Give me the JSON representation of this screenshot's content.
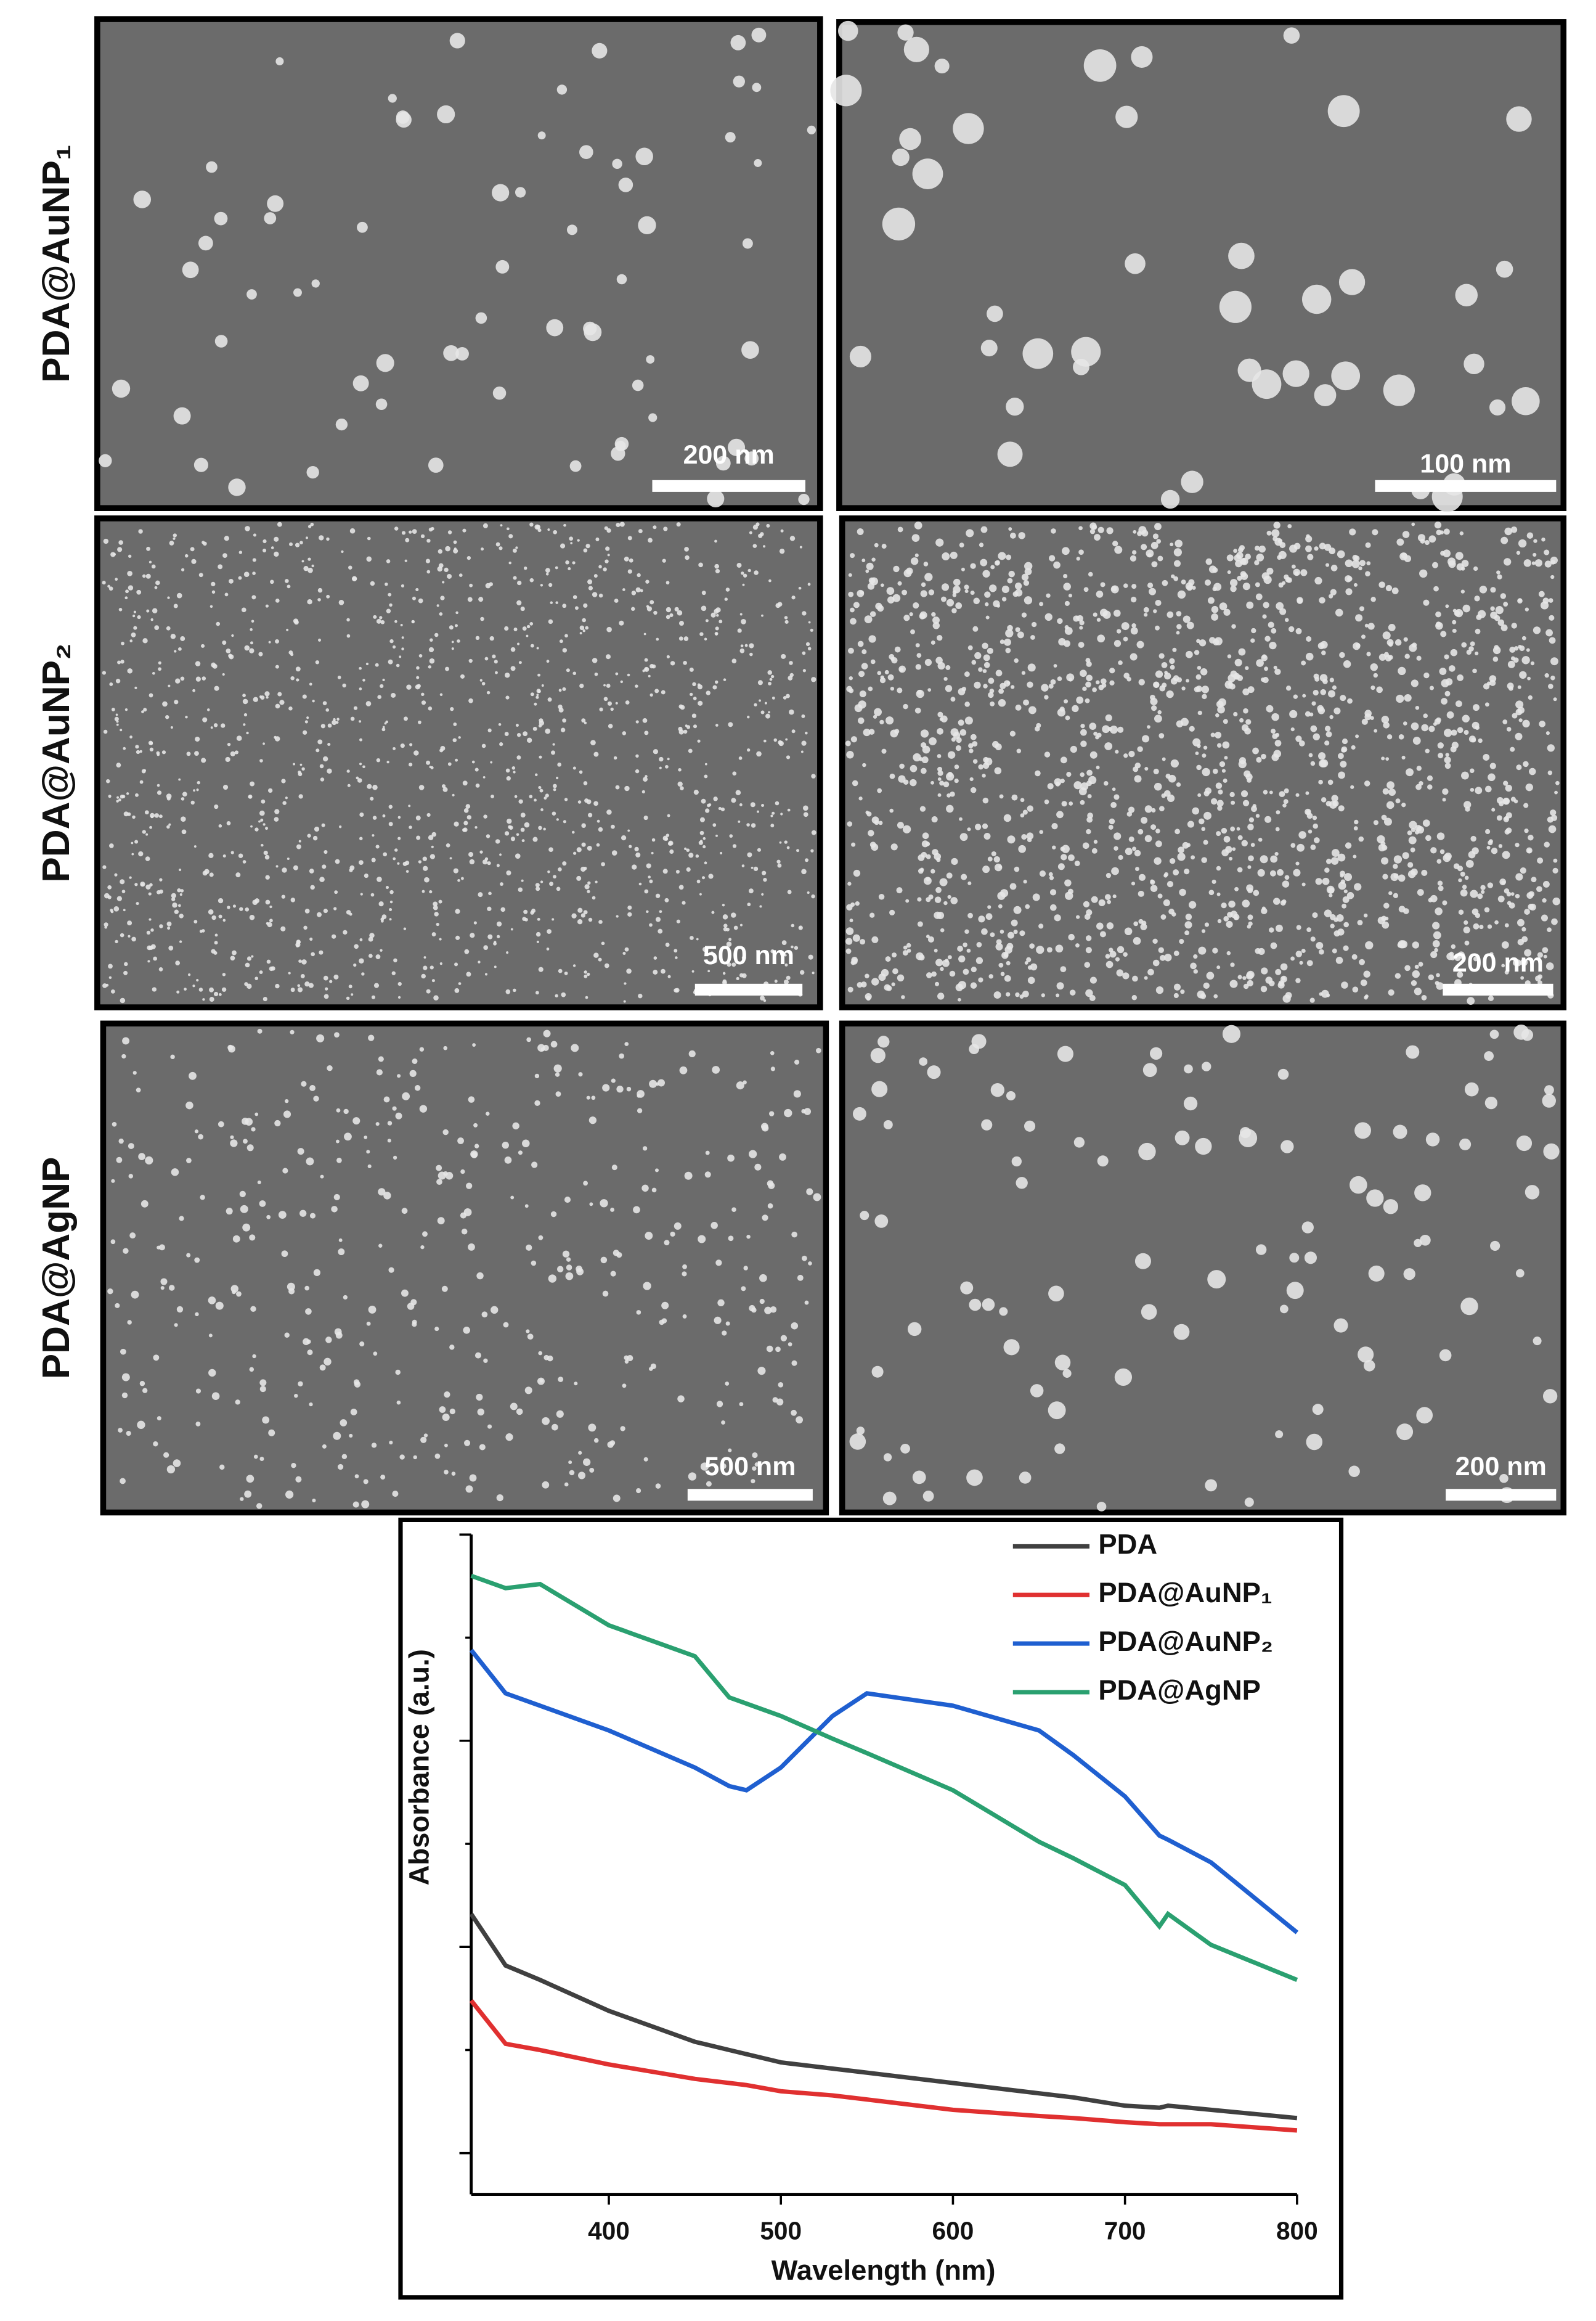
{
  "figure": {
    "rows": [
      {
        "label": "PDA@AuNP₁",
        "scale_bars": [
          "200 nm",
          "100 nm"
        ]
      },
      {
        "label": "PDA@AuNP₂",
        "scale_bars": [
          "500 nm",
          "200 nm"
        ]
      },
      {
        "label": "PDA@AgNP",
        "scale_bars": [
          "500 nm",
          "200 nm"
        ]
      }
    ]
  },
  "chart_data": {
    "type": "line",
    "x_label": "Wavelength (nm)",
    "y_label": "Absorbance (a.u.)",
    "x": [
      320,
      340,
      360,
      400,
      450,
      470,
      480,
      500,
      530,
      550,
      600,
      650,
      670,
      700,
      720,
      725,
      750,
      800
    ],
    "series": [
      {
        "name": "PDA",
        "color": "#404040",
        "values": [
          1.16,
          0.91,
          0.84,
          0.69,
          0.54,
          0.5,
          0.48,
          0.44,
          0.41,
          0.39,
          0.34,
          0.29,
          0.27,
          0.23,
          0.22,
          0.23,
          0.21,
          0.17
        ]
      },
      {
        "name": "PDA@AuNP₁",
        "color": "#e03030",
        "values": [
          0.74,
          0.53,
          0.5,
          0.43,
          0.36,
          0.34,
          0.33,
          0.3,
          0.28,
          0.26,
          0.21,
          0.18,
          0.17,
          0.15,
          0.14,
          0.14,
          0.14,
          0.11
        ]
      },
      {
        "name": "PDA@AuNP₂",
        "color": "#1f5fd0",
        "values": [
          2.44,
          2.23,
          2.17,
          2.05,
          1.87,
          1.78,
          1.76,
          1.87,
          2.12,
          2.23,
          2.17,
          2.05,
          1.93,
          1.73,
          1.54,
          1.52,
          1.41,
          1.07
        ]
      },
      {
        "name": "PDA@AgNP",
        "color": "#2aa070",
        "values": [
          2.8,
          2.74,
          2.76,
          2.56,
          2.41,
          2.21,
          2.18,
          2.12,
          2.01,
          1.94,
          1.76,
          1.51,
          1.43,
          1.3,
          1.1,
          1.16,
          1.01,
          0.84
        ]
      }
    ],
    "xlim": [
      320,
      800
    ],
    "xticks": [
      400,
      500,
      600,
      700,
      800
    ],
    "ylim": [
      -0.2,
      3.0
    ],
    "yticks": [
      0,
      0.5,
      1,
      1.5,
      2,
      2.5,
      3
    ],
    "legend": "top-right",
    "grid": false
  }
}
